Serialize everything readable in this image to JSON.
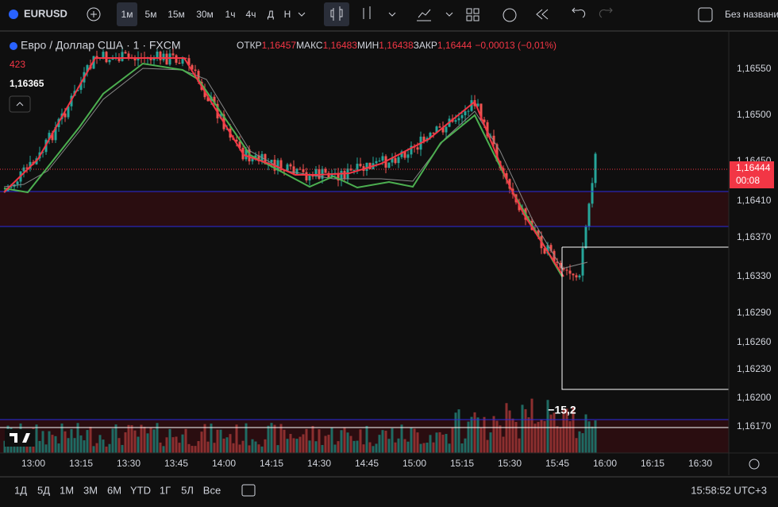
{
  "toolbar": {
    "symbol": "EURUSD",
    "intervals": [
      "1м",
      "5м",
      "15м",
      "30м",
      "1ч",
      "4ч",
      "Д",
      "Н"
    ],
    "checkbox_label": "Без названия"
  },
  "legend": {
    "title": "Евро / Доллар США · 1 · FXCM",
    "open_label": "ОТКР",
    "open": "1,16457",
    "high_label": "МАКС",
    "high": "1,16483",
    "low_label": "МИН",
    "low": "1,16438",
    "close_label": "ЗАКР",
    "close": "1,16444",
    "change": "−0,00013 (−0,01%)",
    "indicator_value": "423",
    "price_line": "1,16365"
  },
  "price_axis": [
    "1,16550",
    "1,16500",
    "1,16450",
    "1,16410",
    "1,16370",
    "1,16330",
    "1,16290",
    "1,16260",
    "1,16230",
    "1,16200",
    "1,16170"
  ],
  "last_price": {
    "price": "1,16444",
    "countdown": "00:08"
  },
  "measure": "−15,2",
  "time_axis": [
    "13:00",
    "13:15",
    "13:30",
    "13:45",
    "14:00",
    "14:15",
    "14:30",
    "14:45",
    "15:00",
    "15:15",
    "15:30",
    "15:45",
    "16:00",
    "16:15",
    "16:30"
  ],
  "bottom": {
    "periods": [
      "1Д",
      "5Д",
      "1М",
      "3М",
      "6М",
      "YTD",
      "1Г",
      "5Л",
      "Все"
    ],
    "clock": "15:58:52 UTC+3"
  }
}
